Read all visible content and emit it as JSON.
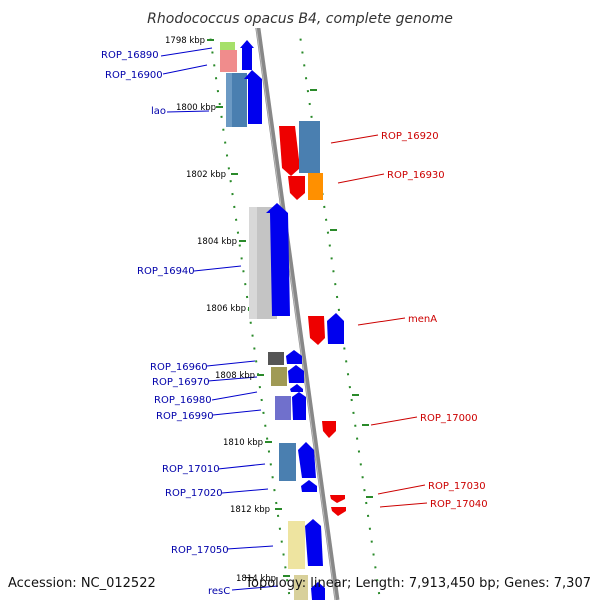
{
  "title": "Rhodococcus opacus B4, complete genome",
  "footer": {
    "accession": "Accession: NC_012522",
    "summary": "Topology: linear; Length: 7,913,450 bp; Genes: 7,307"
  },
  "colors": {
    "backbone": "#888888",
    "ruler": "#2a8a2a",
    "left_label": "#0000aa",
    "right_label": "#cc0000",
    "forward_gene": "#0000ee",
    "reverse_gene": "#ee0000"
  },
  "position_ticks": [
    "1798 kbp",
    "1800 kbp",
    "1802 kbp",
    "1804 kbp",
    "1806 kbp",
    "1808 kbp",
    "1810 kbp",
    "1812 kbp",
    "1814 kbp"
  ],
  "left_labels": [
    "ROP_16890",
    "ROP_16900",
    "lao",
    "ROP_16940",
    "ROP_16960",
    "ROP_16970",
    "ROP_16980",
    "ROP_16990",
    "ROP_17010",
    "ROP_17020",
    "ROP_17050",
    "resC"
  ],
  "right_labels": [
    "ROP_16920",
    "ROP_16930",
    "menA",
    "ROP_17000",
    "ROP_17030",
    "ROP_17040"
  ]
}
